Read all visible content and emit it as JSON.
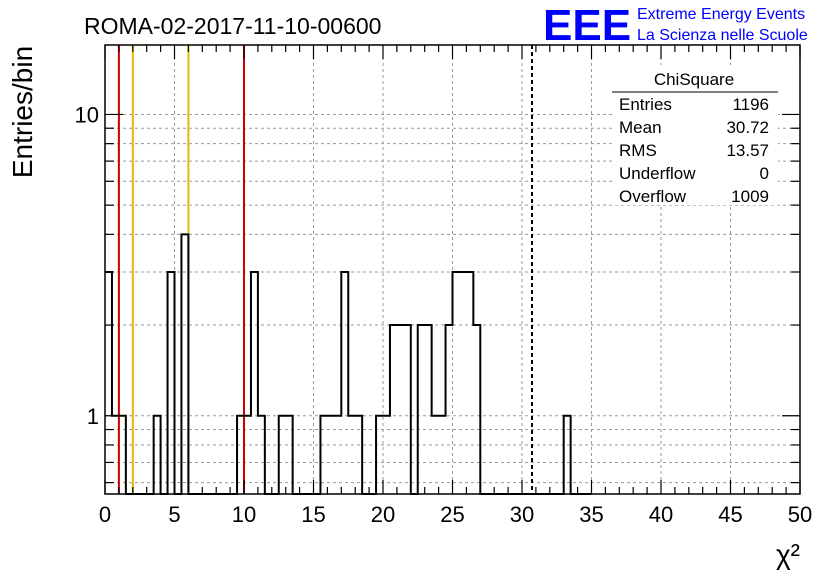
{
  "header": {
    "run_title": "ROMA-02-2017-11-10-00600",
    "logo_text": "EEE",
    "logo_line1": "Extreme Energy Events",
    "logo_line2": "La Scienza nelle Scuole"
  },
  "stats": {
    "title": "ChiSquare",
    "rows": [
      {
        "label": "Entries",
        "value": "1196"
      },
      {
        "label": "Mean",
        "value": "30.72"
      },
      {
        "label": "RMS",
        "value": "13.57"
      },
      {
        "label": "Underflow",
        "value": "0"
      },
      {
        "label": "Overflow",
        "value": "1009"
      }
    ]
  },
  "chart_data": {
    "type": "bar",
    "style": "step-histogram",
    "ylabel": "Entries/bin",
    "xlabel": "χ²",
    "xlim": [
      0,
      50
    ],
    "ylim": [
      0.55,
      17
    ],
    "y_scale": "log",
    "grid": true,
    "bin_width": 0.5,
    "x_ticks": [
      0,
      5,
      10,
      15,
      20,
      25,
      30,
      35,
      40,
      45,
      50
    ],
    "x_tick_labels": [
      "0",
      "5",
      "10",
      "15",
      "20",
      "25",
      "30",
      "35",
      "40",
      "45",
      "50"
    ],
    "y_ticks": [
      1,
      10
    ],
    "y_tick_labels": [
      "1",
      "10"
    ],
    "values": [
      3,
      1,
      1,
      0,
      0,
      0,
      0,
      1,
      0,
      3,
      0,
      4,
      0,
      0,
      0,
      0,
      0,
      0,
      0,
      1,
      1,
      3,
      1,
      0,
      0,
      1,
      1,
      0,
      0,
      0,
      0,
      1,
      1,
      1,
      3,
      1,
      1,
      0,
      0,
      1,
      1,
      2,
      2,
      2,
      0,
      2,
      2,
      1,
      1,
      2,
      3,
      3,
      3,
      2,
      0,
      0,
      0,
      0,
      0,
      0,
      0,
      0,
      0,
      0,
      0,
      0,
      1,
      0,
      0,
      0
    ],
    "vlines": [
      {
        "x": 1,
        "color": "#cc0000",
        "style": "solid"
      },
      {
        "x": 2,
        "color": "#e6b800",
        "style": "solid"
      },
      {
        "x": 6,
        "color": "#e6b800",
        "style": "solid"
      },
      {
        "x": 10,
        "color": "#cc0000",
        "style": "solid"
      },
      {
        "x": 30.72,
        "color": "#000000",
        "style": "dashed"
      }
    ]
  }
}
